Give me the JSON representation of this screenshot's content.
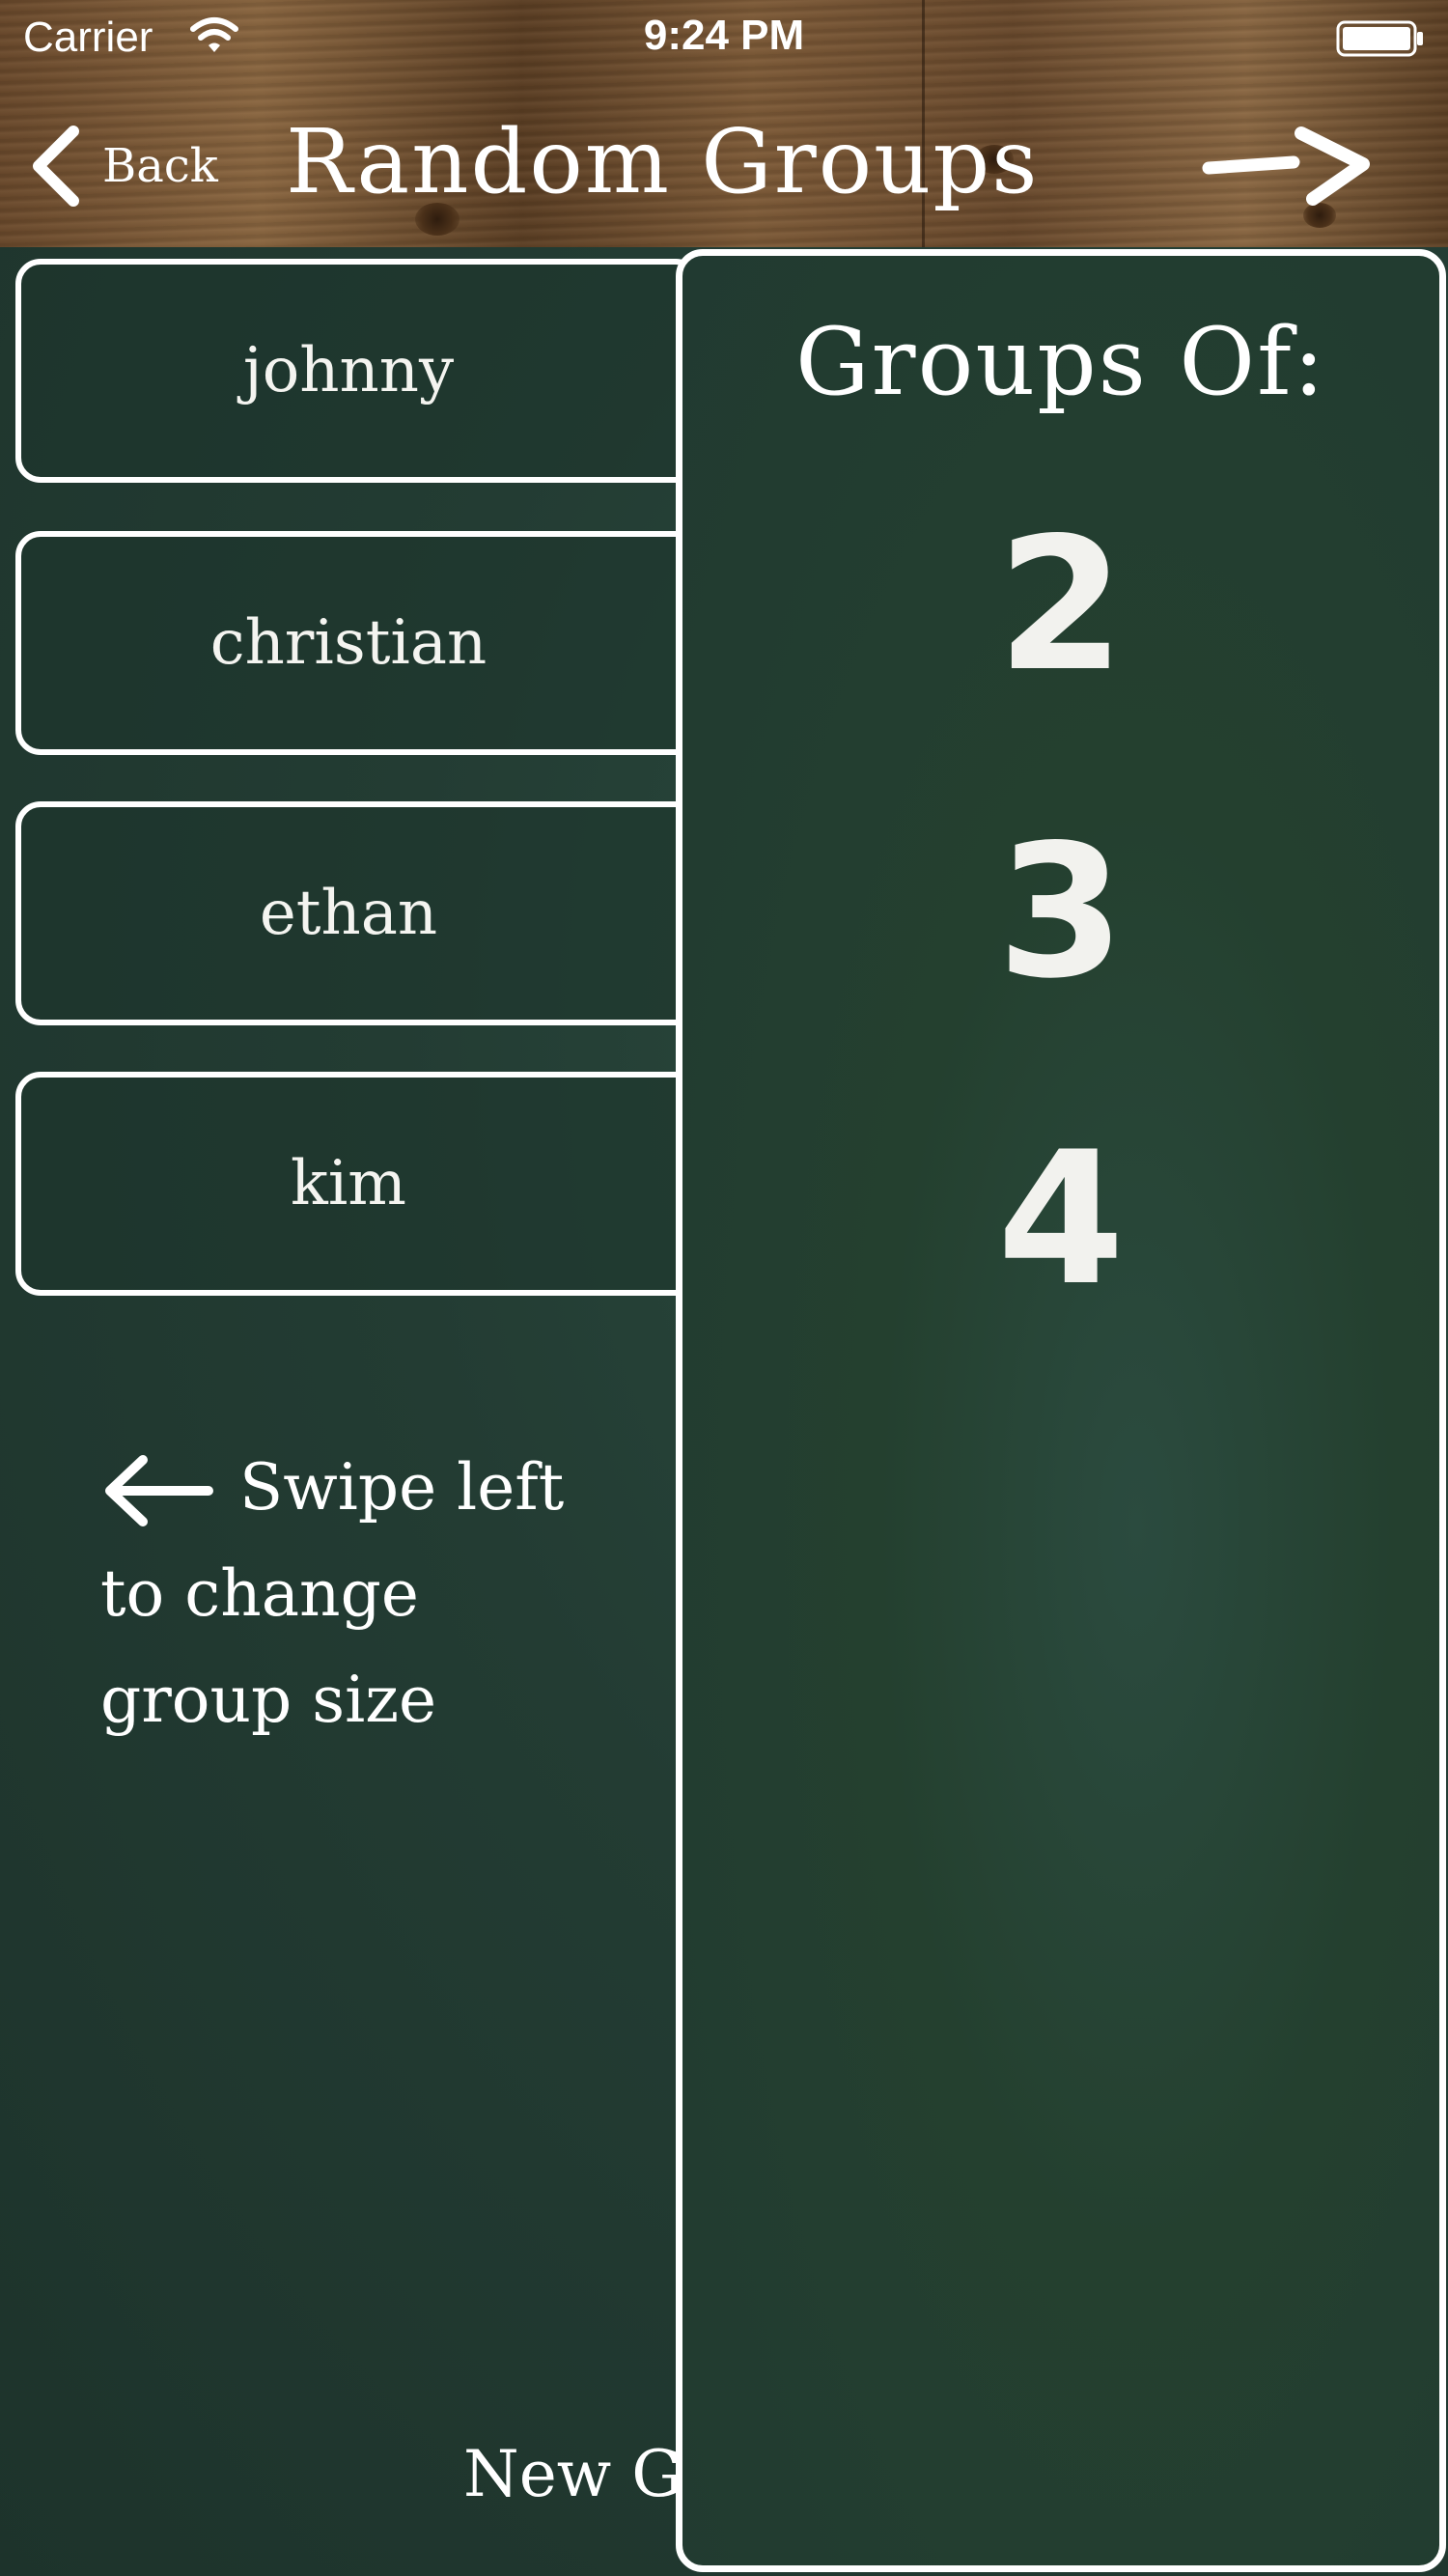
{
  "status_bar": {
    "carrier": "Carrier",
    "time": "9:24 PM"
  },
  "nav": {
    "back_label": "Back",
    "title": "Random Groups",
    "forward_icon": "arrow-right-icon"
  },
  "students": [
    {
      "name": "johnny"
    },
    {
      "name": "christian"
    },
    {
      "name": "ethan"
    },
    {
      "name": "kim"
    }
  ],
  "hint": {
    "line1": "Swipe left",
    "line2": "to change",
    "line3": "group size"
  },
  "bottom_button": {
    "label": "New Groups"
  },
  "group_panel": {
    "title": "Groups Of:",
    "options": [
      "2",
      "3",
      "4"
    ]
  },
  "colors": {
    "chalkboard": "#233c33",
    "chalk": "#ffffff",
    "wood": "#6b4a2c"
  }
}
